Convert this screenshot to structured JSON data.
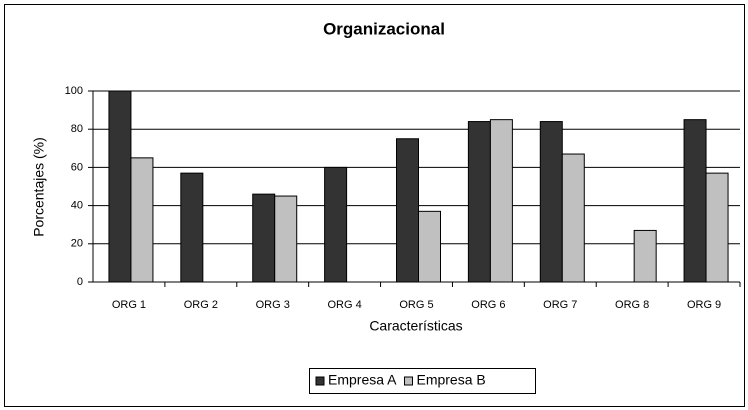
{
  "chart_data": {
    "type": "bar",
    "title": "Organizacional",
    "x_label": "Características",
    "y_label": "Porcentajes (%)",
    "categories": [
      "ORG 1",
      "ORG 2",
      "ORG 3",
      "ORG 4",
      "ORG 5",
      "ORG 6",
      "ORG 7",
      "ORG 8",
      "ORG 9"
    ],
    "series": [
      {
        "name": "Empresa A",
        "color": "#333333",
        "values": [
          100,
          57,
          46,
          60,
          75,
          84,
          84,
          0,
          85
        ]
      },
      {
        "name": "Empresa B",
        "color": "#c0c0c0",
        "values": [
          65,
          0,
          45,
          0,
          37,
          85,
          67,
          27,
          57
        ]
      }
    ],
    "ylim": [
      0,
      100
    ],
    "yticks": [
      0,
      20,
      40,
      60,
      80,
      100
    ],
    "grid": true,
    "legend": "bottom"
  }
}
